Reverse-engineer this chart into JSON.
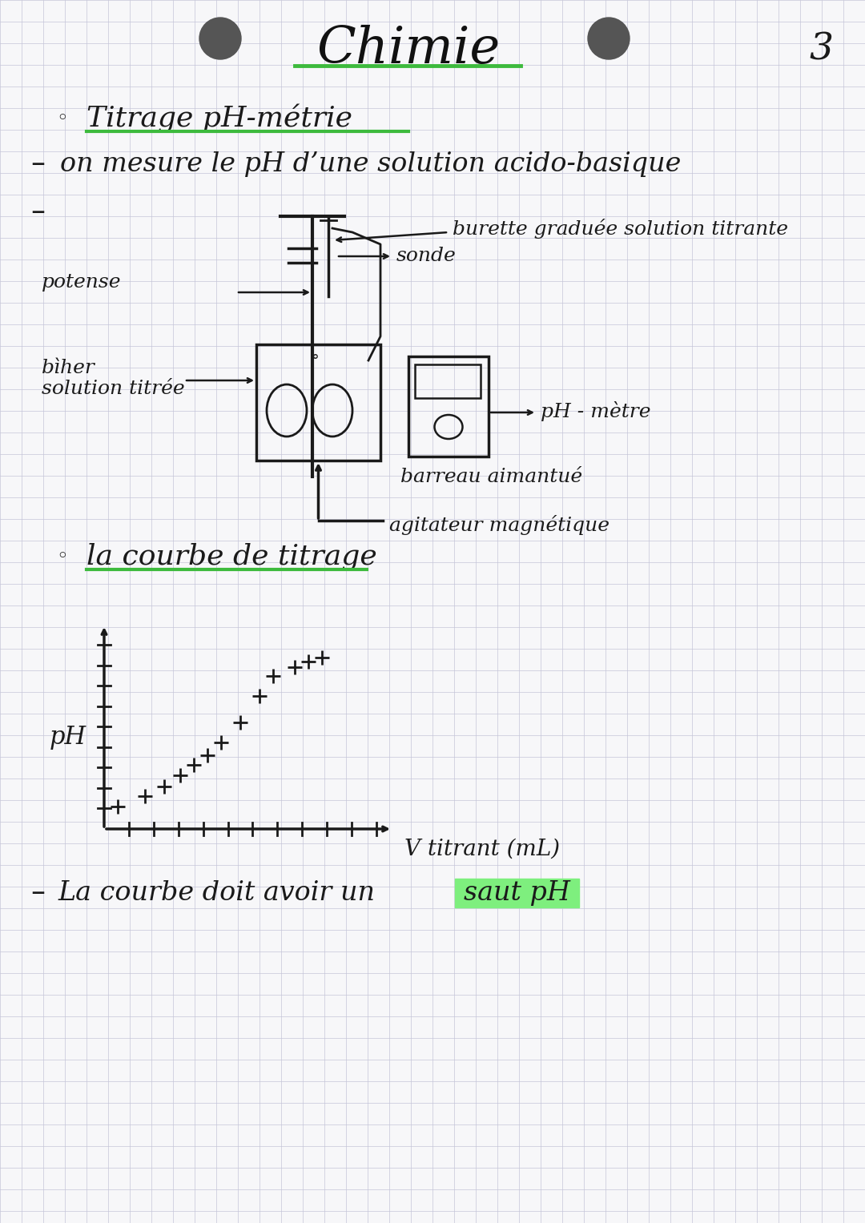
{
  "bg_color": "#f7f7f9",
  "grid_color": "#c5c5d8",
  "title": "Chimie",
  "page_number": "3",
  "section1_bullet": "Titrage pH-métrie",
  "section1_line1": "on mesure le pH d’une solution acido-basique",
  "diagram_labels": {
    "burette": "burette graduée solution titrante",
    "potense": "potense",
    "sonde": "sonde",
    "becher_line1": "bìher",
    "becher_line2": "solution titrée",
    "barreau": "barreau aimantué",
    "agitateur": "agitateur magnétique",
    "ph_metre": "pH - mètre"
  },
  "section2_bullet": "la courbe de titrage",
  "graph_xlabel": "V titrant (mL)",
  "graph_ylabel": "pH",
  "scatter_x": [
    0.5,
    1.5,
    2.2,
    2.8,
    3.3,
    3.8,
    4.3,
    5.0,
    5.7,
    6.2,
    7.0,
    7.5,
    8.0
  ],
  "scatter_y": [
    1.2,
    1.8,
    2.3,
    2.9,
    3.5,
    4.0,
    4.7,
    5.8,
    7.2,
    8.3,
    8.8,
    9.1,
    9.3
  ],
  "bottom_prefix": "La courbe doit avoir un ",
  "bottom_highlight": "saut pH",
  "highlight_color": "#7eef7e",
  "green_underline": "#3dba3d",
  "ink_color": "#1a1a1a",
  "hole_color": "#555555"
}
